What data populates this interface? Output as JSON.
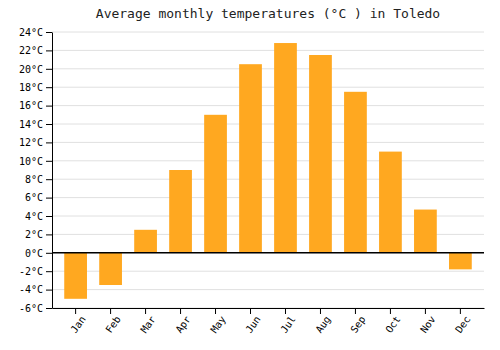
{
  "chart_data": {
    "type": "bar",
    "title": "Average monthly temperatures (°C ) in Toledo",
    "categories": [
      "Jan",
      "Feb",
      "Mar",
      "Apr",
      "May",
      "Jun",
      "Jul",
      "Aug",
      "Sep",
      "Oct",
      "Nov",
      "Dec"
    ],
    "values": [
      -5.0,
      -3.5,
      2.5,
      9.0,
      15.0,
      20.5,
      22.8,
      21.5,
      17.5,
      11.0,
      4.7,
      -1.8
    ],
    "color": "#FFA820",
    "ylim": [
      -6,
      24
    ],
    "yticks": [
      {
        "value": -6,
        "label": "-6°C"
      },
      {
        "value": -4,
        "label": "-4°C"
      },
      {
        "value": -2,
        "label": "-2°C"
      },
      {
        "value": 0,
        "label": "0°C"
      },
      {
        "value": 2,
        "label": "2°C"
      },
      {
        "value": 4,
        "label": "4°C"
      },
      {
        "value": 6,
        "label": "6°C"
      },
      {
        "value": 8,
        "label": "8°C"
      },
      {
        "value": 10,
        "label": "10°C"
      },
      {
        "value": 12,
        "label": "12°C"
      },
      {
        "value": 14,
        "label": "14°C"
      },
      {
        "value": 16,
        "label": "16°C"
      },
      {
        "value": 18,
        "label": "18°C"
      },
      {
        "value": 20,
        "label": "20°C"
      },
      {
        "value": 22,
        "label": "22°C"
      },
      {
        "value": 24,
        "label": "24°C"
      }
    ],
    "grid": true
  }
}
